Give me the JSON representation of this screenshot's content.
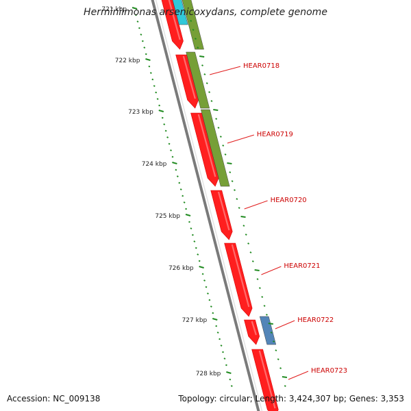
{
  "title": "Herminiimonas arsenicoxydans, complete genome",
  "footer": {
    "accession": "Accession: NC_009138",
    "summary": "Topology: circular; Length: 3,424,307 bp; Genes: 3,353"
  },
  "ticks": [
    {
      "label": "721 kbp",
      "position_kbp": 721
    },
    {
      "label": "722 kbp",
      "position_kbp": 722
    },
    {
      "label": "723 kbp",
      "position_kbp": 723
    },
    {
      "label": "724 kbp",
      "position_kbp": 724
    },
    {
      "label": "725 kbp",
      "position_kbp": 725
    },
    {
      "label": "726 kbp",
      "position_kbp": 726
    },
    {
      "label": "727 kbp",
      "position_kbp": 727
    },
    {
      "label": "728 kbp",
      "position_kbp": 728
    }
  ],
  "genes": [
    {
      "name": "HEAR0718"
    },
    {
      "name": "HEAR0719"
    },
    {
      "name": "HEAR0720"
    },
    {
      "name": "HEAR0721"
    },
    {
      "name": "HEAR0722"
    },
    {
      "name": "HEAR0723"
    }
  ],
  "colors": {
    "cds": "#ff1f1f",
    "cds_highlight": "#ff8080",
    "backbone": "#7a7a7a",
    "cog_green": "#6f9a2d",
    "cog_cyan": "#26c6d8",
    "cog_blue": "#4a7fb5",
    "tick": "#1f8a1f",
    "label": "#cc0000",
    "leader": "#e01a1a"
  }
}
